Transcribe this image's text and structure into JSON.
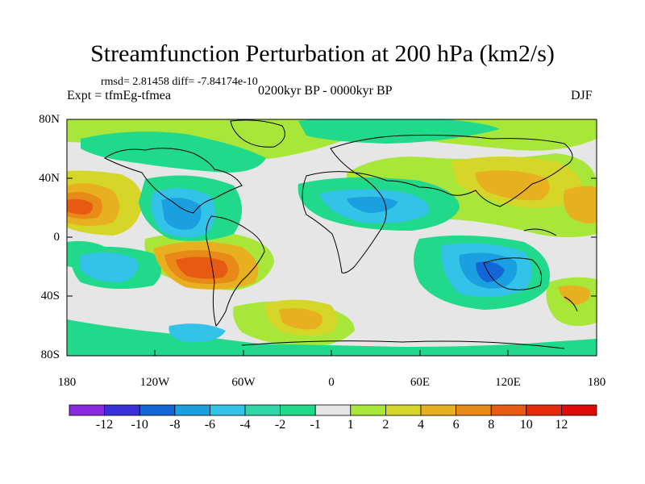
{
  "title": "Streamfunction Perturbation at 200 hPa (km2/s)",
  "stats": "rmsd= 2.81458  diff= -7.84174e-10",
  "experiment": "Expt = tfmEg-tfmea",
  "period": "0200kyr BP - 0000kyr BP",
  "season": "DJF",
  "lat_ticks": [
    "80N",
    "40N",
    "0",
    "40S",
    "80S"
  ],
  "lon_ticks": [
    "180",
    "120W",
    "60W",
    "0",
    "60E",
    "120E",
    "180"
  ],
  "colorbar": {
    "labels": [
      "-12",
      "-10",
      "-8",
      "-6",
      "-4",
      "-2",
      "-1",
      "1",
      "2",
      "4",
      "6",
      "8",
      "10",
      "12"
    ],
    "colors": [
      "#8a2be2",
      "#3b2fd9",
      "#1466d6",
      "#1aa0e0",
      "#34c3e8",
      "#30d7a6",
      "#20d98a",
      "#e6e6e6",
      "#a8e63a",
      "#d5d628",
      "#e8b020",
      "#e88a18",
      "#e85a12",
      "#e62a0c",
      "#e00a06"
    ]
  }
}
